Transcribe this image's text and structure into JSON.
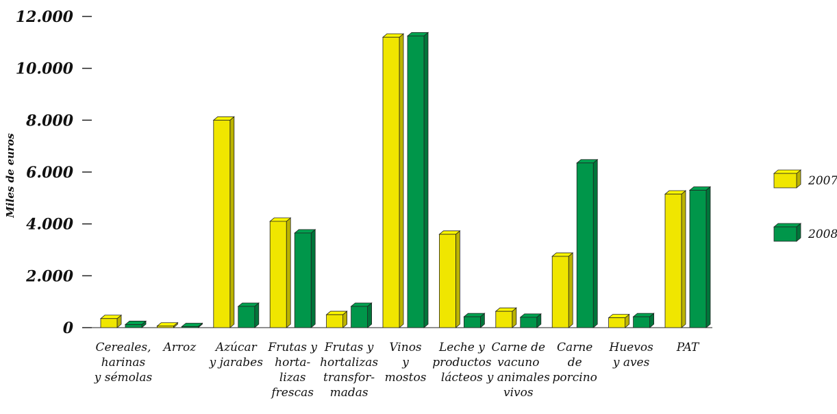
{
  "chart_data": {
    "type": "bar",
    "title": "",
    "xlabel": "",
    "ylabel": "Miles de euros",
    "ylim": [
      0,
      12000
    ],
    "yticks": [
      {
        "value": 0,
        "label": "0"
      },
      {
        "value": 2000,
        "label": "2.000"
      },
      {
        "value": 4000,
        "label": "4.000"
      },
      {
        "value": 6000,
        "label": "6.000"
      },
      {
        "value": 8000,
        "label": "8.000"
      },
      {
        "value": 10000,
        "label": "10.000"
      },
      {
        "value": 12000,
        "label": "12.000"
      }
    ],
    "categories": [
      [
        "Cereales,",
        "harinas",
        "y sémolas"
      ],
      [
        "Arroz"
      ],
      [
        "Azúcar",
        "y jarabes"
      ],
      [
        "Frutas y",
        "horta-",
        "lizas",
        "frescas"
      ],
      [
        "Frutas y",
        "hortalizas",
        "transfor-",
        "madas"
      ],
      [
        "Vinos",
        "y",
        "mostos"
      ],
      [
        "Leche y",
        "productos",
        "lácteos"
      ],
      [
        "Carne de",
        "vacuno",
        "y animales",
        "vivos"
      ],
      [
        "Carne",
        "de",
        "porcino"
      ],
      [
        "Huevos",
        "y aves"
      ],
      [
        "PAT"
      ]
    ],
    "series": [
      {
        "name": "2007",
        "color": "#f0e600",
        "values": [
          350,
          60,
          8000,
          4100,
          500,
          11200,
          3600,
          630,
          2750,
          380,
          5150
        ]
      },
      {
        "name": "2008",
        "color": "#00964a",
        "values": [
          120,
          40,
          820,
          3650,
          820,
          11250,
          420,
          400,
          6350,
          420,
          5300
        ]
      }
    ],
    "grid": false,
    "legend_position": "right"
  }
}
